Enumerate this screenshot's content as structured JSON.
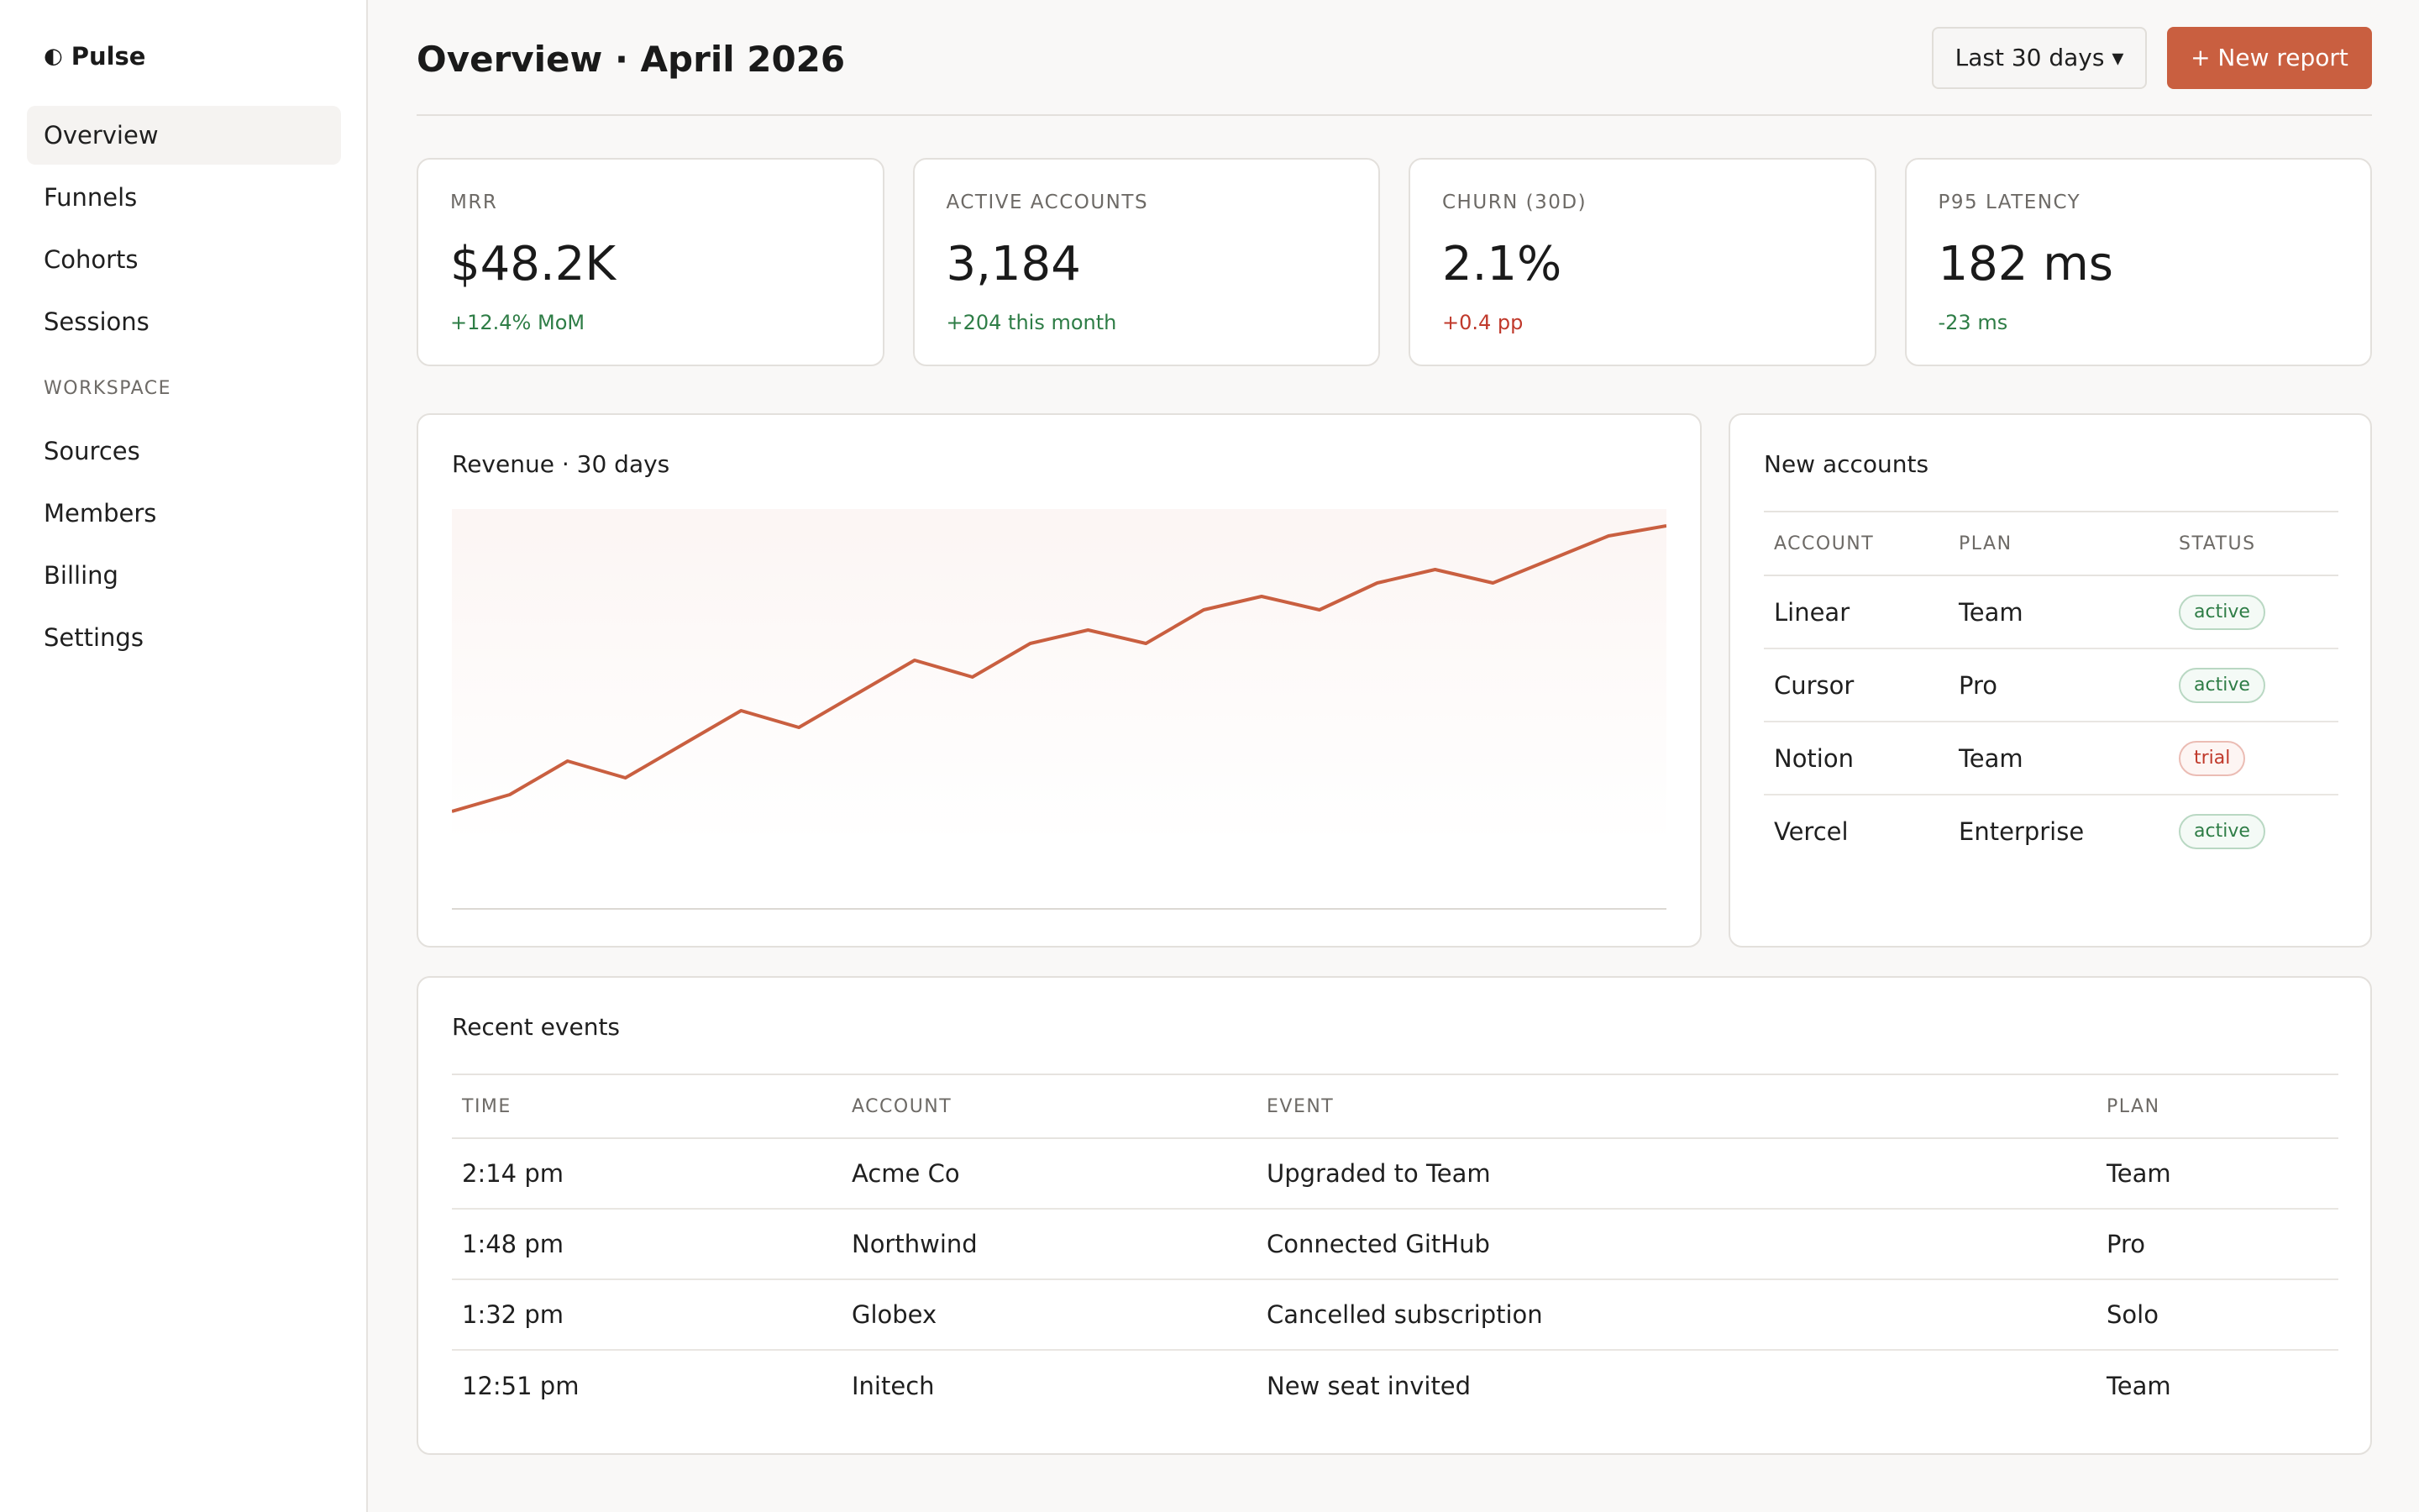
{
  "brand": {
    "icon": "◐",
    "name": "Pulse"
  },
  "sidebar": {
    "items": [
      {
        "label": "Overview",
        "active": true
      },
      {
        "label": "Funnels"
      },
      {
        "label": "Cohorts"
      },
      {
        "label": "Sessions"
      }
    ],
    "section_label": "WORKSPACE",
    "workspace_items": [
      {
        "label": "Sources"
      },
      {
        "label": "Members"
      },
      {
        "label": "Billing"
      },
      {
        "label": "Settings"
      }
    ]
  },
  "header": {
    "title": "Overview · April 2026",
    "range_label": "Last 30 days ▾",
    "new_report_label": "+ New report"
  },
  "kpis": [
    {
      "label": "MRR",
      "value": "$48.2K",
      "delta": "+12.4% MoM",
      "trend": "positive"
    },
    {
      "label": "ACTIVE ACCOUNTS",
      "value": "3,184",
      "delta": "+204 this month",
      "trend": "positive"
    },
    {
      "label": "CHURN (30D)",
      "value": "2.1%",
      "delta": "+0.4 pp",
      "trend": "negative"
    },
    {
      "label": "P95 LATENCY",
      "value": "182 ms",
      "delta": "-23 ms",
      "trend": "positive"
    }
  ],
  "revenue_card": {
    "title": "Revenue · 30 days"
  },
  "chart_data": {
    "type": "line",
    "title": "Revenue · 30 days",
    "series": [
      {
        "values": [
          10,
          15,
          25,
          20,
          30,
          40,
          35,
          45,
          55,
          50,
          60,
          64,
          60,
          70,
          74,
          70,
          78,
          82,
          78,
          85,
          92,
          95
        ]
      }
    ],
    "ylim": [
      0,
      100
    ],
    "grid": false,
    "line_color": "#c95f40"
  },
  "accounts_card": {
    "title": "New accounts",
    "columns": [
      "ACCOUNT",
      "PLAN",
      "STATUS"
    ],
    "rows": [
      {
        "account": "Linear",
        "plan": "Team",
        "status": "active"
      },
      {
        "account": "Cursor",
        "plan": "Pro",
        "status": "active"
      },
      {
        "account": "Notion",
        "plan": "Team",
        "status": "trial"
      },
      {
        "account": "Vercel",
        "plan": "Enterprise",
        "status": "active"
      }
    ]
  },
  "events_card": {
    "title": "Recent events",
    "columns": [
      "TIME",
      "ACCOUNT",
      "EVENT",
      "PLAN"
    ],
    "rows": [
      {
        "time": "2:14 pm",
        "account": "Acme Co",
        "event": "Upgraded to Team",
        "plan": "Team"
      },
      {
        "time": "1:48 pm",
        "account": "Northwind",
        "event": "Connected GitHub",
        "plan": "Pro"
      },
      {
        "time": "1:32 pm",
        "account": "Globex",
        "event": "Cancelled subscription",
        "plan": "Solo"
      },
      {
        "time": "12:51 pm",
        "account": "Initech",
        "event": "New seat invited",
        "plan": "Team"
      }
    ]
  },
  "colors": {
    "accent": "#c95f40",
    "positive": "#2e7d46",
    "negative": "#c0392b"
  }
}
